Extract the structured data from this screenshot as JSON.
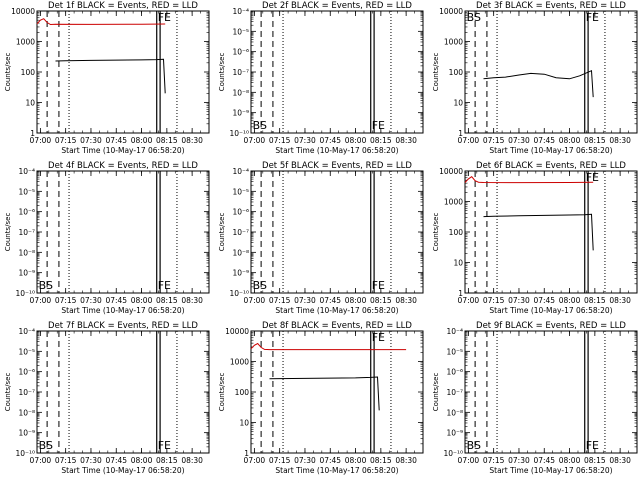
{
  "chart_data": [
    {
      "type": "line",
      "title": "Det 1f BLACK = Events, RED = LLD",
      "ylabel": "Counts/sec",
      "xlabel": "Start Time (10-May-17 06:58:20)",
      "y_scale": "log",
      "ylim": [
        1,
        10000
      ],
      "y_ticks": [
        "1",
        "10",
        "100",
        "1000",
        "10000"
      ],
      "x_ticks": [
        "07:00",
        "07:15",
        "07:30",
        "07:45",
        "08:00",
        "08:15",
        "08:30"
      ],
      "markers": [
        {
          "label": "BS",
          "show": false
        },
        {
          "label": "FE",
          "show": true
        }
      ],
      "series": [
        {
          "name": "BLACK",
          "color": "#000000",
          "x": [
            "07:09",
            "07:15",
            "07:30",
            "07:45",
            "08:00",
            "08:09",
            "08:13",
            "08:14"
          ],
          "y": [
            230,
            235,
            240,
            245,
            250,
            255,
            260,
            20
          ]
        },
        {
          "name": "RED",
          "color": "#cc0000",
          "x": [
            "06:58",
            "07:00",
            "07:02",
            "07:04",
            "07:06",
            "07:09",
            "07:30",
            "08:00",
            "08:14"
          ],
          "y": [
            3800,
            5000,
            5600,
            4200,
            3600,
            3700,
            3650,
            3700,
            3750
          ]
        }
      ]
    },
    {
      "type": "line",
      "title": "Det 2f BLACK = Events, RED = LLD",
      "ylabel": "Counts/sec",
      "xlabel": "Start Time (10-May-17 06:58:20)",
      "y_scale": "log",
      "ylim": [
        1e-10,
        0.0001
      ],
      "y_ticks": [
        "10⁻¹⁰",
        "10⁻⁹",
        "10⁻⁸",
        "10⁻⁷",
        "10⁻⁶",
        "10⁻⁵",
        "10⁻⁴"
      ],
      "x_ticks": [
        "07:00",
        "07:15",
        "07:30",
        "07:45",
        "08:00",
        "08:15",
        "08:30"
      ],
      "markers": [
        {
          "label": "BS",
          "show": true
        },
        {
          "label": "FE",
          "show": true
        }
      ],
      "series": []
    },
    {
      "type": "line",
      "title": "Det 3f BLACK = Events, RED = LLD",
      "ylabel": "Counts/sec",
      "xlabel": "Start Time (10-May-17 06:58:20)",
      "y_scale": "log",
      "ylim": [
        1,
        10000
      ],
      "y_ticks": [
        "1",
        "10",
        "100",
        "1000",
        "10000"
      ],
      "x_ticks": [
        "07:00",
        "07:15",
        "07:30",
        "07:45",
        "08:00",
        "08:15",
        "08:30"
      ],
      "markers": [
        {
          "label": "BS",
          "show": true
        },
        {
          "label": "FE",
          "show": true
        }
      ],
      "series": [
        {
          "name": "BLACK",
          "color": "#000000",
          "x": [
            "07:09",
            "07:15",
            "07:22",
            "07:30",
            "07:37",
            "07:45",
            "07:52",
            "08:00",
            "08:06",
            "08:13",
            "08:14"
          ],
          "y": [
            60,
            65,
            68,
            80,
            90,
            85,
            65,
            60,
            75,
            110,
            15
          ]
        }
      ]
    },
    {
      "type": "line",
      "title": "Det 4f BLACK = Events, RED = LLD",
      "ylabel": "Counts/sec",
      "xlabel": "Start Time (10-May-17 06:58:20)",
      "y_scale": "log",
      "ylim": [
        1e-10,
        0.0001
      ],
      "y_ticks": [
        "10⁻¹⁰",
        "10⁻⁹",
        "10⁻⁸",
        "10⁻⁷",
        "10⁻⁶",
        "10⁻⁵",
        "10⁻⁴"
      ],
      "x_ticks": [
        "07:00",
        "07:15",
        "07:30",
        "07:45",
        "08:00",
        "08:15",
        "08:30"
      ],
      "markers": [
        {
          "label": "BS",
          "show": true
        },
        {
          "label": "FE",
          "show": true
        }
      ],
      "series": []
    },
    {
      "type": "line",
      "title": "Det 5f BLACK = Events, RED = LLD",
      "ylabel": "Counts/sec",
      "xlabel": "Start Time (10-May-17 06:58:20)",
      "y_scale": "log",
      "ylim": [
        1e-10,
        0.0001
      ],
      "y_ticks": [
        "10⁻¹⁰",
        "10⁻⁹",
        "10⁻⁸",
        "10⁻⁷",
        "10⁻⁶",
        "10⁻⁵",
        "10⁻⁴"
      ],
      "x_ticks": [
        "07:00",
        "07:15",
        "07:30",
        "07:45",
        "08:00",
        "08:15",
        "08:30"
      ],
      "markers": [
        {
          "label": "BS",
          "show": true
        },
        {
          "label": "FE",
          "show": true
        }
      ],
      "series": []
    },
    {
      "type": "line",
      "title": "Det 6f BLACK = Events, RED = LLD",
      "ylabel": "Counts/sec",
      "xlabel": "Start Time (10-May-17 06:58:20)",
      "y_scale": "log",
      "ylim": [
        1,
        10000
      ],
      "y_ticks": [
        "1",
        "10",
        "100",
        "1000",
        "10000"
      ],
      "x_ticks": [
        "07:00",
        "07:15",
        "07:30",
        "07:45",
        "08:00",
        "08:15",
        "08:30"
      ],
      "markers": [
        {
          "label": "BS",
          "show": false
        },
        {
          "label": "FE",
          "show": true
        }
      ],
      "series": [
        {
          "name": "BLACK",
          "color": "#000000",
          "x": [
            "07:09",
            "07:15",
            "07:30",
            "07:45",
            "08:00",
            "08:09",
            "08:13",
            "08:14"
          ],
          "y": [
            320,
            330,
            340,
            350,
            360,
            370,
            380,
            25
          ]
        },
        {
          "name": "RED",
          "color": "#cc0000",
          "x": [
            "06:58",
            "07:00",
            "07:02",
            "07:04",
            "07:06",
            "07:09",
            "07:30",
            "08:00",
            "08:14"
          ],
          "y": [
            4200,
            5500,
            6500,
            4800,
            4300,
            4200,
            4150,
            4200,
            4250
          ]
        }
      ]
    },
    {
      "type": "line",
      "title": "Det 7f BLACK = Events, RED = LLD",
      "ylabel": "Counts/sec",
      "xlabel": "Start Time (10-May-17 06:58:20)",
      "y_scale": "log",
      "ylim": [
        1e-10,
        0.0001
      ],
      "y_ticks": [
        "10⁻¹⁰",
        "10⁻⁹",
        "10⁻⁸",
        "10⁻⁷",
        "10⁻⁶",
        "10⁻⁵",
        "10⁻⁴"
      ],
      "x_ticks": [
        "07:00",
        "07:15",
        "07:30",
        "07:45",
        "08:00",
        "08:15",
        "08:30"
      ],
      "markers": [
        {
          "label": "BS",
          "show": true
        },
        {
          "label": "FE",
          "show": true
        }
      ],
      "series": []
    },
    {
      "type": "line",
      "title": "Det 8f BLACK = Events, RED = LLD",
      "ylabel": "Counts/sec",
      "xlabel": "Start Time (10-May-17 06:58:20)",
      "y_scale": "log",
      "ylim": [
        1,
        10000
      ],
      "y_ticks": [
        "1",
        "10",
        "100",
        "1000",
        "10000"
      ],
      "x_ticks": [
        "07:00",
        "07:15",
        "07:30",
        "07:45",
        "08:00",
        "08:15",
        "08:30"
      ],
      "markers": [
        {
          "label": "BS",
          "show": false
        },
        {
          "label": "FE",
          "show": true
        }
      ],
      "series": [
        {
          "name": "BLACK",
          "color": "#000000",
          "x": [
            "07:09",
            "07:15",
            "07:30",
            "07:45",
            "08:00",
            "08:09",
            "08:13",
            "08:14"
          ],
          "y": [
            270,
            275,
            280,
            285,
            290,
            300,
            310,
            25
          ]
        },
        {
          "name": "RED",
          "color": "#cc0000",
          "x": [
            "06:58",
            "07:00",
            "07:02",
            "07:04",
            "07:06",
            "07:09",
            "07:30",
            "08:00",
            "08:30"
          ],
          "y": [
            2600,
            3400,
            3900,
            2900,
            2500,
            2450,
            2450,
            2450,
            2450
          ]
        }
      ]
    },
    {
      "type": "line",
      "title": "Det 9f BLACK = Events, RED = LLD",
      "ylabel": "Counts/sec",
      "xlabel": "Start Time (10-May-17 06:58:20)",
      "y_scale": "log",
      "ylim": [
        1e-10,
        0.0001
      ],
      "y_ticks": [
        "10⁻¹⁰",
        "10⁻⁹",
        "10⁻⁸",
        "10⁻⁷",
        "10⁻⁶",
        "10⁻⁵",
        "10⁻⁴"
      ],
      "x_ticks": [
        "07:00",
        "07:15",
        "07:30",
        "07:45",
        "08:00",
        "08:15",
        "08:30"
      ],
      "markers": [
        {
          "label": "BS",
          "show": true
        },
        {
          "label": "FE",
          "show": true
        }
      ],
      "series": []
    }
  ]
}
